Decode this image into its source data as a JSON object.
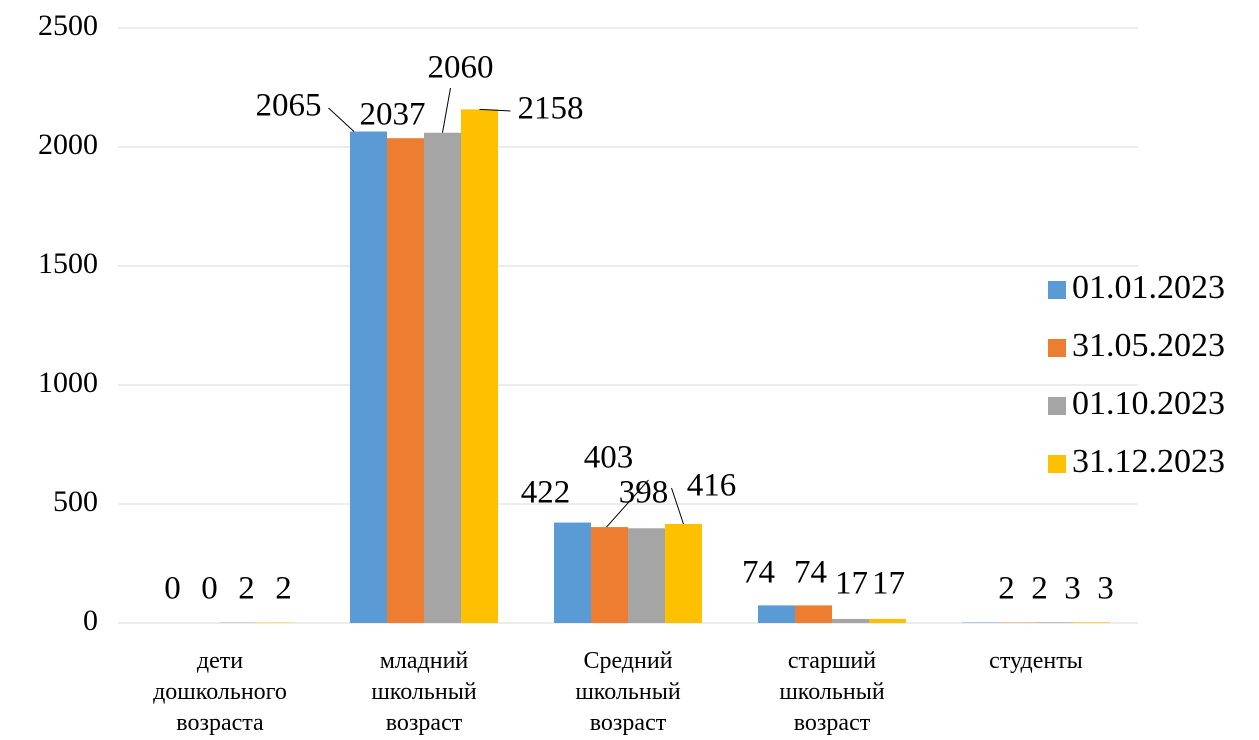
{
  "chart_data": {
    "type": "bar",
    "categories": [
      "дети дошкольного возраста",
      "младний школьный возраст",
      "Средний школьный возраст",
      "старший школьный возраст",
      "студенты"
    ],
    "series": [
      {
        "name": "01.01.2023",
        "color": "#5b9bd5",
        "values": [
          0,
          2065,
          422,
          74,
          2
        ]
      },
      {
        "name": "31.05.2023",
        "color": "#ed7d31",
        "values": [
          0,
          2037,
          403,
          74,
          2
        ]
      },
      {
        "name": "01.10.2023",
        "color": "#a5a5a5",
        "values": [
          2,
          2060,
          398,
          17,
          3
        ]
      },
      {
        "name": "31.12.2023",
        "color": "#ffc000",
        "values": [
          2,
          2158,
          416,
          17,
          3
        ]
      }
    ],
    "ylim": [
      0,
      2500
    ],
    "yticks": [
      0,
      500,
      1000,
      1500,
      2000,
      2500
    ],
    "grid": true,
    "legend": "right"
  }
}
